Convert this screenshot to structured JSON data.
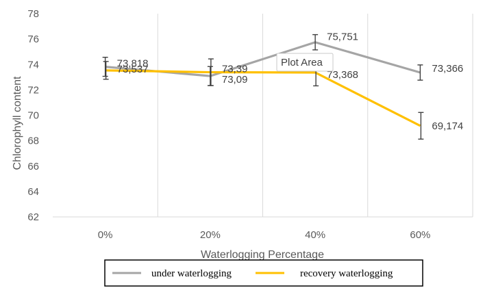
{
  "chart_data": {
    "type": "line",
    "categories": [
      "0%",
      "20%",
      "40%",
      "60%"
    ],
    "xlabel": "Waterlogging Percentage",
    "ylabel": "Chlorophyll content",
    "ylim": [
      62,
      78
    ],
    "yticks": [
      62,
      64,
      66,
      68,
      70,
      72,
      74,
      76,
      78
    ],
    "grid": "vertical",
    "legend_position": "bottom",
    "series": [
      {
        "name": "under waterlogging",
        "color": "#a5a5a5",
        "values": [
          73.818,
          73.09,
          75.751,
          73.366
        ],
        "labels": [
          "73,818",
          "73,09",
          "75,751",
          "73,366"
        ],
        "error": [
          0.75,
          0.75,
          0.6,
          0.6
        ]
      },
      {
        "name": "recovery waterlogging",
        "color": "#ffc000",
        "values": [
          73.537,
          73.39,
          73.368,
          69.174
        ],
        "labels": [
          "73,537",
          "73,39",
          "73,368",
          "69,174"
        ],
        "error": [
          0.7,
          1.05,
          1.05,
          1.05
        ]
      }
    ],
    "tooltip": "Plot Area"
  }
}
